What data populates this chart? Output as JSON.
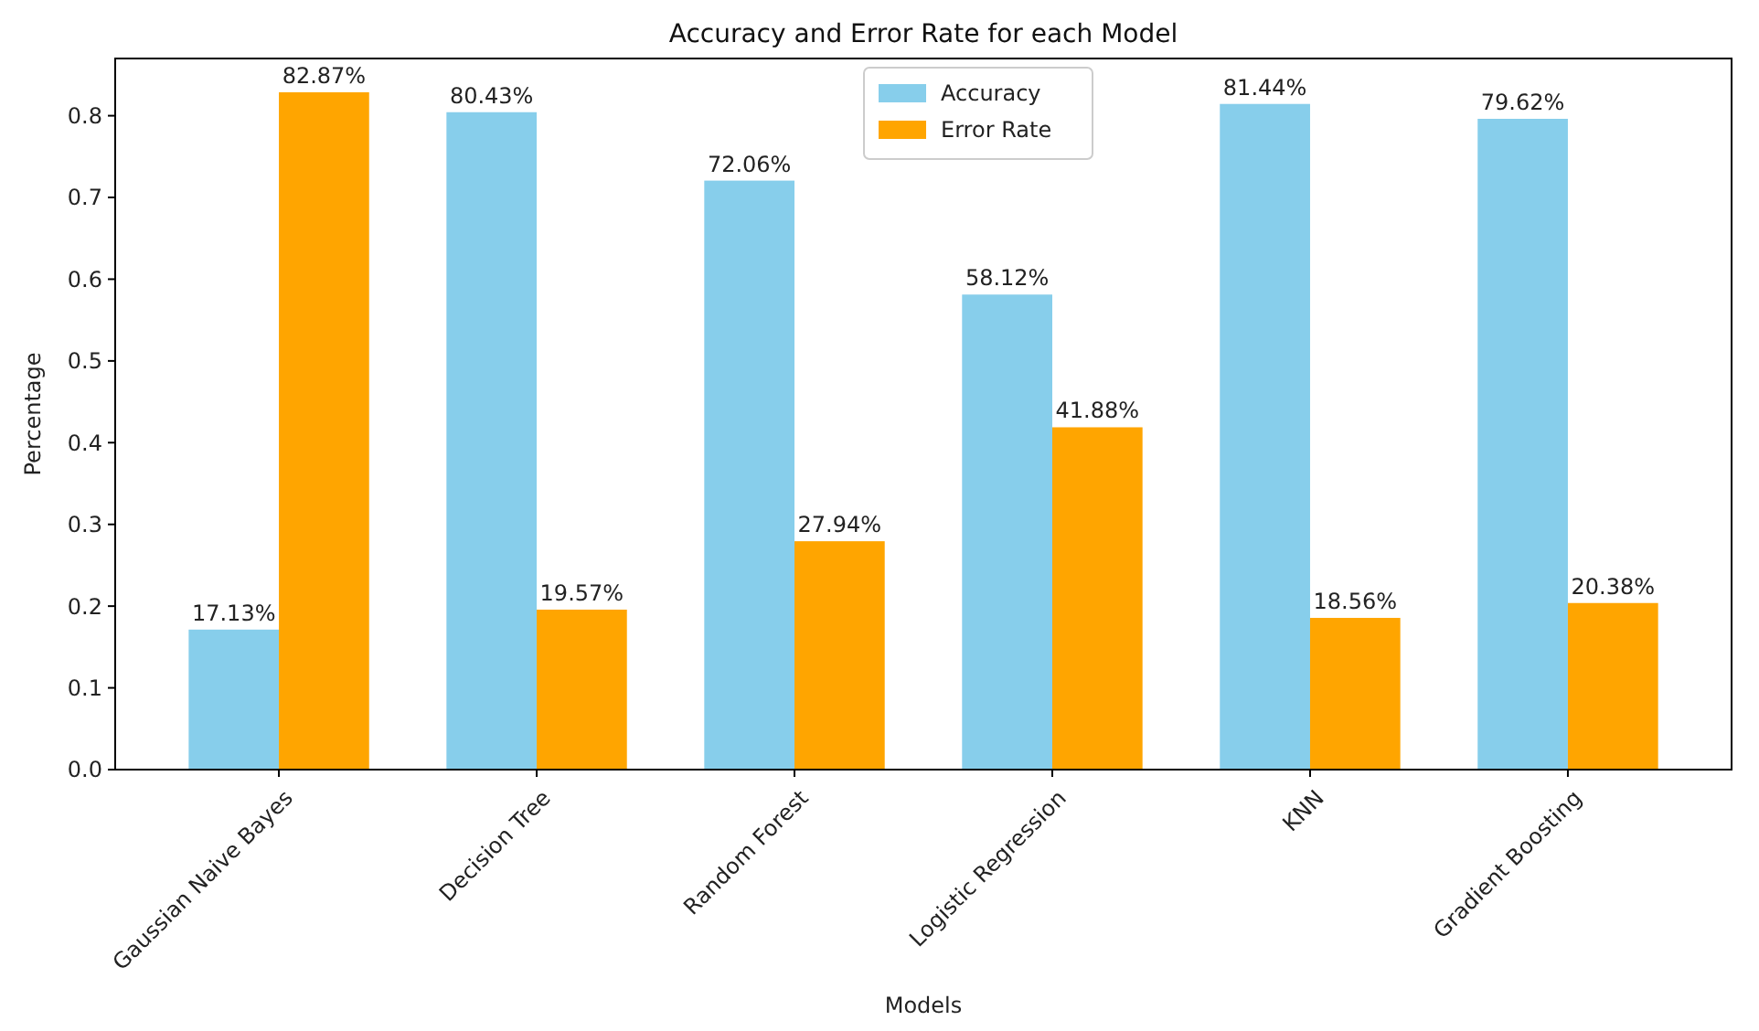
{
  "chart_data": {
    "type": "bar",
    "title": "Accuracy and Error Rate for each Model",
    "xlabel": "Models",
    "ylabel": "Percentage",
    "categories": [
      "Gaussian Naive Bayes",
      "Decision Tree",
      "Random Forest",
      "Logistic Regression",
      "KNN",
      "Gradient Boosting"
    ],
    "series": [
      {
        "name": "Accuracy",
        "color": "#87ceeb",
        "values": [
          0.1713,
          0.8043,
          0.7206,
          0.5812,
          0.8144,
          0.7962
        ],
        "value_labels": [
          "17.13%",
          "80.43%",
          "72.06%",
          "58.12%",
          "81.44%",
          "79.62%"
        ]
      },
      {
        "name": "Error Rate",
        "color": "#ffa500",
        "values": [
          0.8287,
          0.1957,
          0.2794,
          0.4188,
          0.1856,
          0.2038
        ],
        "value_labels": [
          "82.87%",
          "19.57%",
          "27.94%",
          "41.88%",
          "18.56%",
          "20.38%"
        ]
      }
    ],
    "ylim": [
      0,
      0.87
    ],
    "yticks": [
      {
        "value": 0,
        "label": "0.0"
      },
      {
        "value": 0.1,
        "label": "0.1"
      },
      {
        "value": 0.2,
        "label": "0.2"
      },
      {
        "value": 0.3,
        "label": "0.3"
      },
      {
        "value": 0.4,
        "label": "0.4"
      },
      {
        "value": 0.5,
        "label": "0.5"
      },
      {
        "value": 0.6,
        "label": "0.6"
      },
      {
        "value": 0.7,
        "label": "0.7"
      },
      {
        "value": 0.8,
        "label": "0.8"
      }
    ],
    "legend": "top",
    "grid": false
  }
}
